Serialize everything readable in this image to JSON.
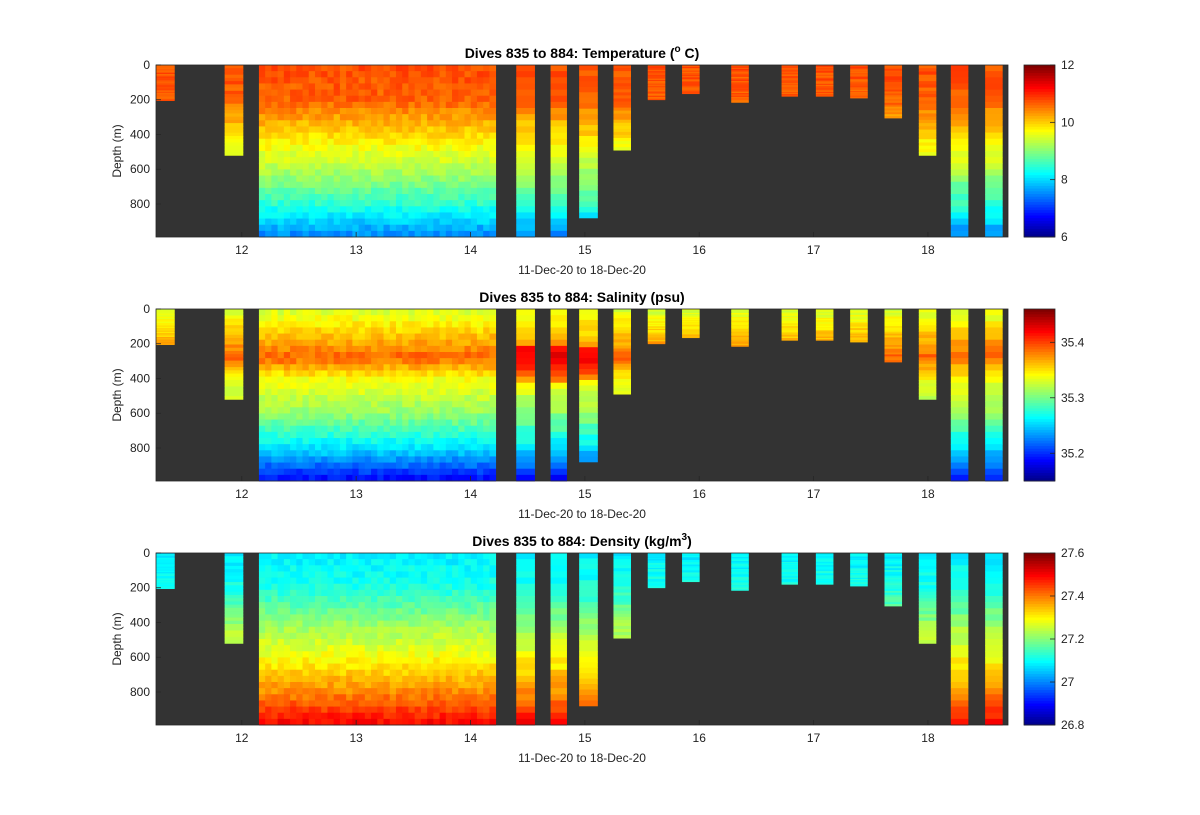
{
  "figure": {
    "background": "#ffffff",
    "plot_background": "#333333"
  },
  "chart_data": [
    {
      "type": "heatmap",
      "title_main": "Dives 835 to 884: Temperature (",
      "title_sup": "o",
      "title_end": " C)",
      "xlabel": "11-Dec-20 to 18-Dec-20",
      "ylabel": "Depth (m)",
      "xlim": [
        11.25,
        18.7
      ],
      "ylim": [
        0,
        990
      ],
      "y_reversed": true,
      "xticks": [
        12,
        13,
        14,
        15,
        16,
        17,
        18
      ],
      "yticks": [
        0,
        200,
        400,
        600,
        800
      ],
      "colormap": "jet",
      "clim": [
        6,
        12
      ],
      "cticks": [
        6,
        8,
        10,
        12
      ],
      "variable": "temp"
    },
    {
      "type": "heatmap",
      "title_main": "Dives 835 to 884: Salinity (psu)",
      "title_sup": "",
      "title_end": "",
      "xlabel": "11-Dec-20 to 18-Dec-20",
      "ylabel": "Depth (m)",
      "xlim": [
        11.25,
        18.7
      ],
      "ylim": [
        0,
        990
      ],
      "y_reversed": true,
      "xticks": [
        12,
        13,
        14,
        15,
        16,
        17,
        18
      ],
      "yticks": [
        0,
        200,
        400,
        600,
        800
      ],
      "colormap": "jet",
      "clim": [
        35.15,
        35.46
      ],
      "cticks": [
        35.2,
        35.3,
        35.4
      ],
      "variable": "sal"
    },
    {
      "type": "heatmap",
      "title_main": "Dives 835 to 884: Density (kg/m",
      "title_sup": "3",
      "title_end": ")",
      "xlabel": "11-Dec-20 to 18-Dec-20",
      "ylabel": "Depth (m)",
      "xlim": [
        11.25,
        18.7
      ],
      "ylim": [
        0,
        990
      ],
      "y_reversed": true,
      "xticks": [
        12,
        13,
        14,
        15,
        16,
        17,
        18
      ],
      "yticks": [
        0,
        200,
        400,
        600,
        800
      ],
      "colormap": "jet",
      "clim": [
        26.8,
        27.6
      ],
      "cticks": [
        26.8,
        27,
        27.2,
        27.4,
        27.6
      ],
      "variable": "dens"
    }
  ],
  "profiles": [
    {
      "x0": 11.25,
      "x1": 11.41,
      "max_depth": 205
    },
    {
      "x0": 11.85,
      "x1": 12.01,
      "max_depth": 520
    },
    {
      "x0": 12.15,
      "x1": 14.22,
      "max_depth": 990
    },
    {
      "x0": 14.4,
      "x1": 14.56,
      "max_depth": 990
    },
    {
      "x0": 14.7,
      "x1": 14.84,
      "max_depth": 990
    },
    {
      "x0": 14.95,
      "x1": 15.11,
      "max_depth": 880
    },
    {
      "x0": 15.25,
      "x1": 15.4,
      "max_depth": 490
    },
    {
      "x0": 15.55,
      "x1": 15.7,
      "max_depth": 200
    },
    {
      "x0": 15.85,
      "x1": 16.0,
      "max_depth": 165
    },
    {
      "x0": 16.28,
      "x1": 16.43,
      "max_depth": 215
    },
    {
      "x0": 16.72,
      "x1": 16.86,
      "max_depth": 180
    },
    {
      "x0": 17.02,
      "x1": 17.17,
      "max_depth": 180
    },
    {
      "x0": 17.32,
      "x1": 17.47,
      "max_depth": 190
    },
    {
      "x0": 17.62,
      "x1": 17.77,
      "max_depth": 305
    },
    {
      "x0": 17.92,
      "x1": 18.07,
      "max_depth": 520
    },
    {
      "x0": 18.2,
      "x1": 18.35,
      "max_depth": 990
    },
    {
      "x0": 18.5,
      "x1": 18.65,
      "max_depth": 990
    }
  ]
}
